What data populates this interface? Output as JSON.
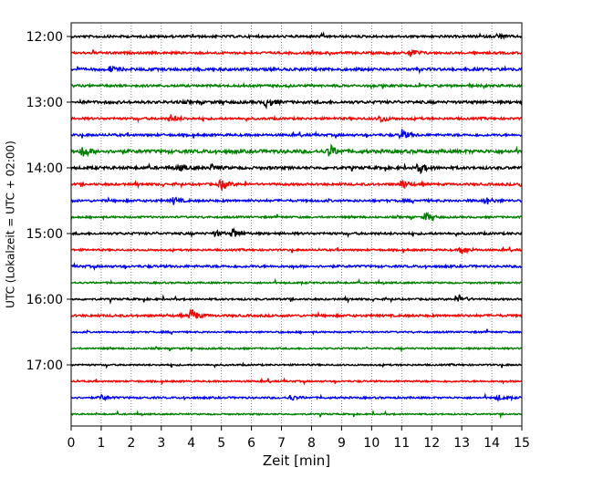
{
  "chart_data": {
    "type": "line",
    "title": "",
    "xlabel": "Zeit  [min]",
    "ylabel": "UTC (Lokalzeit = UTC + 02:00)",
    "xlim": [
      0,
      15
    ],
    "x_ticks": [
      0,
      1,
      2,
      3,
      4,
      5,
      6,
      7,
      8,
      9,
      10,
      11,
      12,
      13,
      14,
      15
    ],
    "x_tick_labels": [
      "0",
      "1",
      "2",
      "3",
      "4",
      "5",
      "6",
      "7",
      "8",
      "9",
      "10",
      "11",
      "12",
      "13",
      "14",
      "15"
    ],
    "y_tick_labels": [
      "12:00",
      "13:00",
      "14:00",
      "15:00",
      "16:00",
      "17:00"
    ],
    "traces_per_hour": 4,
    "trace_minutes": 15,
    "grid": {
      "vertical": true,
      "style": "dotted"
    },
    "legend": "none",
    "color_cycle": [
      "#000000",
      "#ff0000",
      "#0000ff",
      "#008000"
    ],
    "traces": [
      {
        "start": "12:00",
        "color": "#000000",
        "amplitude": 1.0,
        "events": [
          {
            "t": 14.2,
            "amp": 3
          }
        ]
      },
      {
        "start": "12:15",
        "color": "#ff0000",
        "amplitude": 1.0,
        "events": [
          {
            "t": 11.3,
            "amp": 5
          }
        ]
      },
      {
        "start": "12:30",
        "color": "#0000ff",
        "amplitude": 1.2,
        "events": [
          {
            "t": 1.3,
            "amp": 3
          }
        ]
      },
      {
        "start": "12:45",
        "color": "#008000",
        "amplitude": 1.0,
        "events": []
      },
      {
        "start": "13:00",
        "color": "#000000",
        "amplitude": 1.2,
        "events": [
          {
            "t": 6.5,
            "amp": 5
          }
        ]
      },
      {
        "start": "13:15",
        "color": "#ff0000",
        "amplitude": 1.0,
        "events": [
          {
            "t": 3.3,
            "amp": 4
          },
          {
            "t": 10.3,
            "amp": 4
          }
        ]
      },
      {
        "start": "13:30",
        "color": "#0000ff",
        "amplitude": 1.0,
        "events": [
          {
            "t": 11.0,
            "amp": 6
          }
        ]
      },
      {
        "start": "13:45",
        "color": "#008000",
        "amplitude": 1.5,
        "events": [
          {
            "t": 0.4,
            "amp": 6
          },
          {
            "t": 8.6,
            "amp": 7
          }
        ]
      },
      {
        "start": "14:00",
        "color": "#000000",
        "amplitude": 1.2,
        "events": [
          {
            "t": 3.6,
            "amp": 3
          },
          {
            "t": 4.7,
            "amp": 3
          },
          {
            "t": 11.6,
            "amp": 5
          }
        ]
      },
      {
        "start": "14:15",
        "color": "#ff0000",
        "amplitude": 1.0,
        "events": [
          {
            "t": 5.0,
            "amp": 6
          },
          {
            "t": 11.0,
            "amp": 5
          },
          {
            "t": 15.0,
            "amp": 4
          }
        ]
      },
      {
        "start": "14:30",
        "color": "#0000ff",
        "amplitude": 1.0,
        "events": [
          {
            "t": 3.4,
            "amp": 4
          },
          {
            "t": 13.8,
            "amp": 4
          }
        ]
      },
      {
        "start": "14:45",
        "color": "#008000",
        "amplitude": 0.8,
        "events": [
          {
            "t": 11.8,
            "amp": 5
          }
        ]
      },
      {
        "start": "15:00",
        "color": "#000000",
        "amplitude": 1.0,
        "events": [
          {
            "t": 4.8,
            "amp": 3
          },
          {
            "t": 5.4,
            "amp": 5
          }
        ]
      },
      {
        "start": "15:15",
        "color": "#ff0000",
        "amplitude": 0.8,
        "events": [
          {
            "t": 13.0,
            "amp": 5
          }
        ]
      },
      {
        "start": "15:30",
        "color": "#0000ff",
        "amplitude": 1.0,
        "events": []
      },
      {
        "start": "15:45",
        "color": "#008000",
        "amplitude": 0.7,
        "events": []
      },
      {
        "start": "16:00",
        "color": "#000000",
        "amplitude": 0.8,
        "events": [
          {
            "t": 12.9,
            "amp": 5
          }
        ]
      },
      {
        "start": "16:15",
        "color": "#ff0000",
        "amplitude": 1.0,
        "events": [
          {
            "t": 4.0,
            "amp": 7
          }
        ]
      },
      {
        "start": "16:30",
        "color": "#0000ff",
        "amplitude": 0.7,
        "events": []
      },
      {
        "start": "16:45",
        "color": "#008000",
        "amplitude": 0.7,
        "events": []
      },
      {
        "start": "17:00",
        "color": "#000000",
        "amplitude": 0.7,
        "events": []
      },
      {
        "start": "17:15",
        "color": "#ff0000",
        "amplitude": 0.7,
        "events": []
      },
      {
        "start": "17:30",
        "color": "#0000ff",
        "amplitude": 0.8,
        "events": [
          {
            "t": 1.0,
            "amp": 3
          },
          {
            "t": 7.3,
            "amp": 3
          },
          {
            "t": 14.2,
            "amp": 3
          }
        ]
      },
      {
        "start": "17:45",
        "color": "#008000",
        "amplitude": 0.6,
        "events": []
      }
    ]
  }
}
